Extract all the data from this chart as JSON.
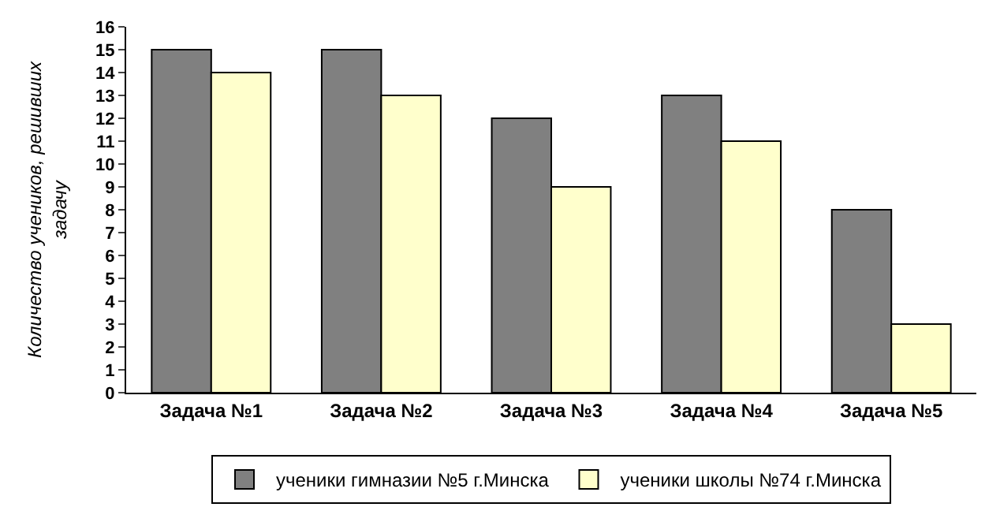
{
  "chart_data": {
    "type": "bar",
    "ylabel": "Количество учеников, решивших задачу",
    "categories": [
      "Задача №1",
      "Задача №2",
      "Задача №3",
      "Задача №4",
      "Задача №5"
    ],
    "series": [
      {
        "name": "ученики гимназии №5 г.Минска",
        "color": "#808080",
        "values": [
          15,
          15,
          12,
          13,
          8
        ]
      },
      {
        "name": "ученики школы №74 г.Минска",
        "color": "#ffffcc",
        "values": [
          14,
          13,
          9,
          11,
          3
        ]
      }
    ],
    "ylim": [
      0,
      16
    ],
    "yticks": [
      0,
      1,
      2,
      3,
      4,
      5,
      6,
      7,
      8,
      9,
      10,
      11,
      12,
      13,
      14,
      15,
      16
    ],
    "grid": false,
    "legend": "bottom"
  }
}
